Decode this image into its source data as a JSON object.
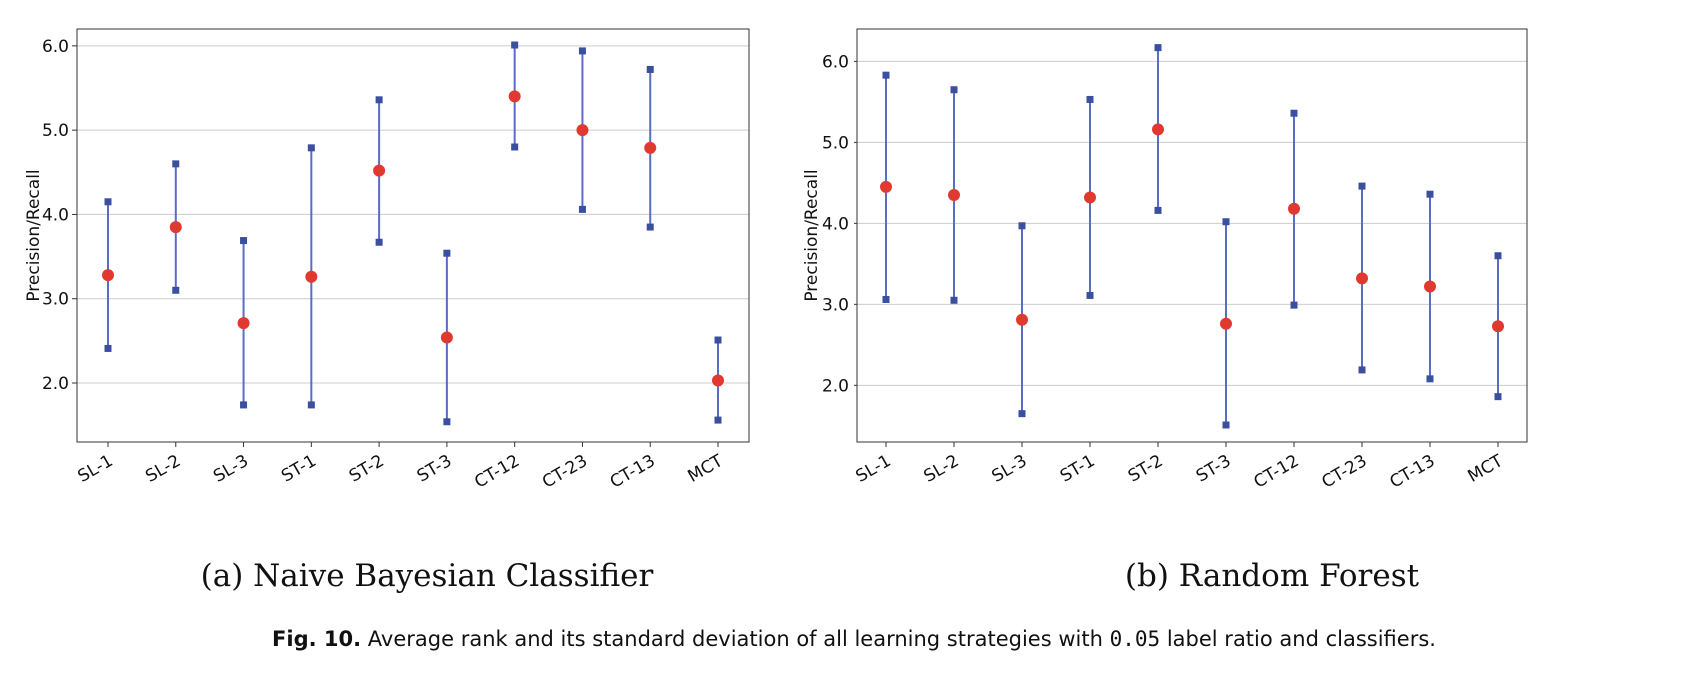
{
  "colors": {
    "mean_point": "#e03a30",
    "std_marker": "#3b4fa0",
    "errorbar_line": "#5b6cc4",
    "grid": "#cccccc",
    "axes": "#333333"
  },
  "chart_data": [
    {
      "type": "errorbar",
      "subcaption": "(a)  Naive Bayesian Classifier",
      "ylabel": "Precision/Recall",
      "xlabel": "",
      "categories": [
        "SL-1",
        "SL-2",
        "SL-3",
        "ST-1",
        "ST-2",
        "ST-3",
        "CT-12",
        "CT-23",
        "CT-13",
        "MCT"
      ],
      "ylim": [
        1.3,
        6.2
      ],
      "yticks": [
        2.0,
        3.0,
        4.0,
        5.0,
        6.0
      ],
      "ytick_labels": [
        "2.0",
        "3.0",
        "4.0",
        "5.0",
        "6.0"
      ],
      "grid": "horizontal",
      "series": [
        {
          "name": "mean",
          "values": [
            3.28,
            3.85,
            2.71,
            3.26,
            4.52,
            2.54,
            5.4,
            5.0,
            4.79,
            2.03
          ]
        },
        {
          "name": "lower",
          "values": [
            2.41,
            3.1,
            1.74,
            1.74,
            3.67,
            1.54,
            4.8,
            4.06,
            3.85,
            1.56
          ]
        },
        {
          "name": "upper",
          "values": [
            4.15,
            4.6,
            3.69,
            4.79,
            5.36,
            3.54,
            6.01,
            5.94,
            5.72,
            2.51
          ]
        }
      ]
    },
    {
      "type": "errorbar",
      "subcaption": "(b)  Random Forest",
      "ylabel": "Precision/Recall",
      "xlabel": "",
      "categories": [
        "SL-1",
        "SL-2",
        "SL-3",
        "ST-1",
        "ST-2",
        "ST-3",
        "CT-12",
        "CT-23",
        "CT-13",
        "MCT"
      ],
      "ylim": [
        1.3,
        6.4
      ],
      "yticks": [
        2.0,
        3.0,
        4.0,
        5.0,
        6.0
      ],
      "ytick_labels": [
        "2.0",
        "3.0",
        "4.0",
        "5.0",
        "6.0"
      ],
      "grid": "horizontal",
      "series": [
        {
          "name": "mean",
          "values": [
            4.45,
            4.35,
            2.81,
            4.32,
            5.16,
            2.76,
            4.18,
            3.32,
            3.22,
            2.73
          ]
        },
        {
          "name": "lower",
          "values": [
            3.06,
            3.05,
            1.65,
            3.11,
            4.16,
            1.51,
            2.99,
            2.19,
            2.08,
            1.86
          ]
        },
        {
          "name": "upper",
          "values": [
            5.83,
            5.65,
            3.97,
            5.53,
            6.17,
            4.02,
            5.36,
            4.46,
            4.36,
            3.6
          ]
        }
      ]
    }
  ],
  "caption": {
    "label": "Fig. 10.",
    "text_before": "Average rank and its standard deviation of all learning strategies with",
    "code": "0.05",
    "text_after": "label ratio and classifiers."
  }
}
